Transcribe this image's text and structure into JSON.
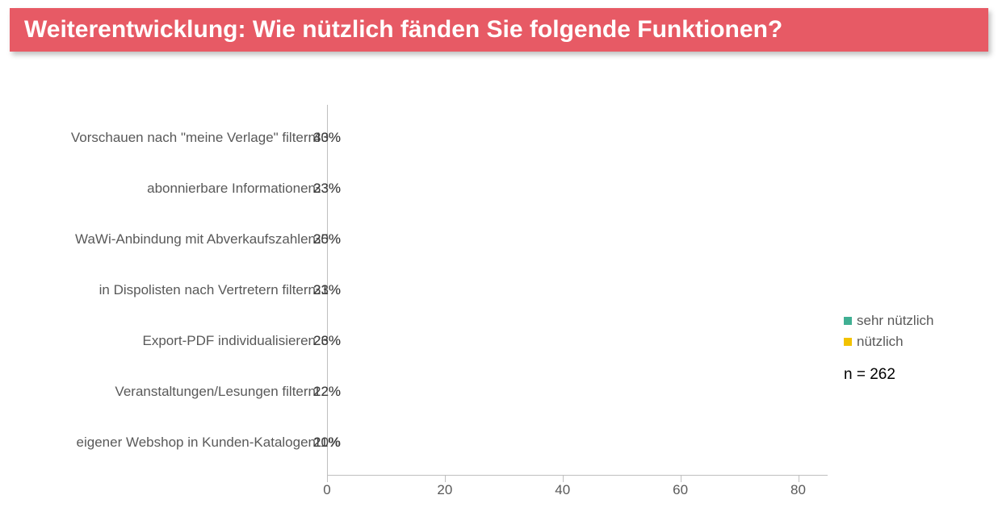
{
  "title": {
    "text": "Weiterentwicklung: Wie nützlich fänden Sie folgende Funktionen?",
    "bg_color": "#e75a65",
    "text_color": "#ffffff"
  },
  "chart": {
    "type": "stacked-horizontal-bar",
    "x_max": 85,
    "x_ticks": [
      0,
      20,
      40,
      60,
      80
    ],
    "axis_color": "#bfbfbf",
    "tick_color": "#bfbfbf",
    "tick_label_color": "#595959",
    "category_label_color": "#595959",
    "value_label_color": "#404040",
    "font_size_labels": 17,
    "series": [
      {
        "name": "sehr nützlich",
        "color": "#40af93"
      },
      {
        "name": "nützlich",
        "color": "#f2c200"
      }
    ],
    "categories": [
      {
        "label": "Vorschauen nach \"meine Verlage\" filtern",
        "values": [
          43,
          30
        ],
        "display": [
          "43%",
          "30%"
        ]
      },
      {
        "label": "abonnierbare Informationen",
        "values": [
          23,
          33
        ],
        "display": [
          "23%",
          "33%"
        ]
      },
      {
        "label": "WaWi-Anbindung mit Abverkaufszahlen",
        "values": [
          35,
          20
        ],
        "display": [
          "35%",
          "20%"
        ]
      },
      {
        "label": "in Dispolisten nach Vertretern filtern",
        "values": [
          33,
          21
        ],
        "display": [
          "33%",
          "21%"
        ]
      },
      {
        "label": "Export-PDF individualisieren",
        "values": [
          23,
          26
        ],
        "display": [
          "23%",
          "26%"
        ]
      },
      {
        "label": "Veranstaltungen/Lesungen filtern",
        "values": [
          12,
          22
        ],
        "display": [
          "12%",
          "22%"
        ]
      },
      {
        "label": "eigener Webshop in Kunden-Katalogen",
        "values": [
          11,
          20
        ],
        "display": [
          "11%",
          "20%"
        ]
      }
    ],
    "n_text": "n = 262"
  }
}
